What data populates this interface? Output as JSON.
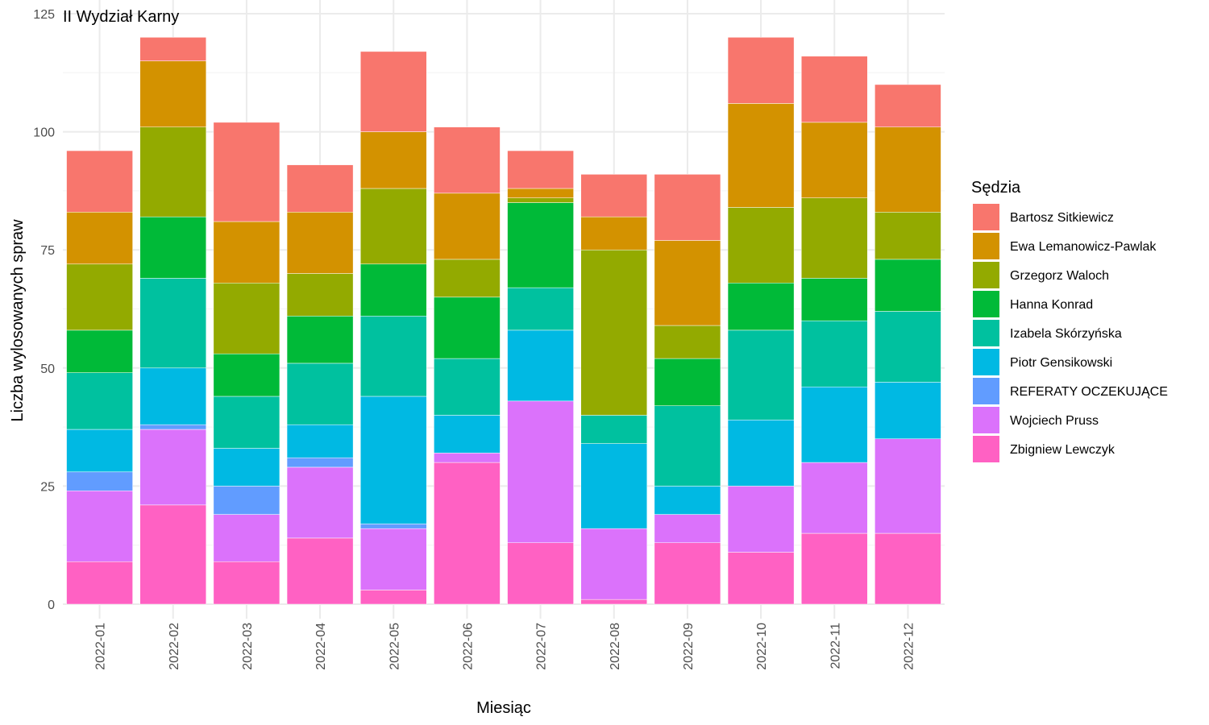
{
  "chart_data": {
    "type": "bar",
    "stacked": true,
    "title": "II Wydział Karny",
    "xlabel": "Miesiąc",
    "ylabel": "Liczba wylosowanych spraw",
    "ylim": [
      0,
      125
    ],
    "yticks": [
      0,
      25,
      50,
      75,
      100,
      125
    ],
    "grid": true,
    "legend_title": "Sędzia",
    "legend_position": "right",
    "categories": [
      "2022-01",
      "2022-02",
      "2022-03",
      "2022-04",
      "2022-05",
      "2022-06",
      "2022-07",
      "2022-08",
      "2022-09",
      "2022-10",
      "2022-11",
      "2022-12"
    ],
    "series": [
      {
        "name": "Bartosz Sitkiewicz",
        "color": "#F8766D",
        "values": [
          13,
          5,
          21,
          10,
          17,
          14,
          8,
          9,
          14,
          14,
          14,
          9
        ]
      },
      {
        "name": "Ewa Lemanowicz-Pawlak",
        "color": "#D39200",
        "values": [
          11,
          14,
          13,
          13,
          12,
          14,
          2,
          7,
          18,
          22,
          16,
          18
        ]
      },
      {
        "name": "Grzegorz Waloch",
        "color": "#93AA00",
        "values": [
          14,
          19,
          15,
          9,
          16,
          8,
          1,
          35,
          7,
          16,
          17,
          10
        ]
      },
      {
        "name": "Hanna Konrad",
        "color": "#00BA38",
        "values": [
          9,
          13,
          9,
          10,
          11,
          13,
          18,
          0,
          10,
          10,
          9,
          11
        ]
      },
      {
        "name": "Izabela Skórzyńska",
        "color": "#00C19F",
        "values": [
          12,
          19,
          11,
          13,
          17,
          12,
          9,
          6,
          17,
          19,
          14,
          15
        ]
      },
      {
        "name": "Piotr Gensikowski",
        "color": "#00B9E3",
        "values": [
          9,
          12,
          8,
          7,
          27,
          8,
          15,
          18,
          6,
          14,
          16,
          12
        ]
      },
      {
        "name": "REFERATY OCZEKUJĄCE",
        "color": "#619CFF",
        "values": [
          4,
          1,
          6,
          2,
          1,
          0,
          0,
          0,
          0,
          0,
          0,
          0
        ]
      },
      {
        "name": "Wojciech Pruss",
        "color": "#DB72FB",
        "values": [
          15,
          16,
          10,
          15,
          13,
          2,
          30,
          15,
          6,
          14,
          15,
          20
        ]
      },
      {
        "name": "Zbigniew Lewczyk",
        "color": "#FF61C3",
        "values": [
          9,
          21,
          9,
          14,
          3,
          30,
          13,
          1,
          13,
          11,
          15,
          15
        ]
      }
    ]
  }
}
